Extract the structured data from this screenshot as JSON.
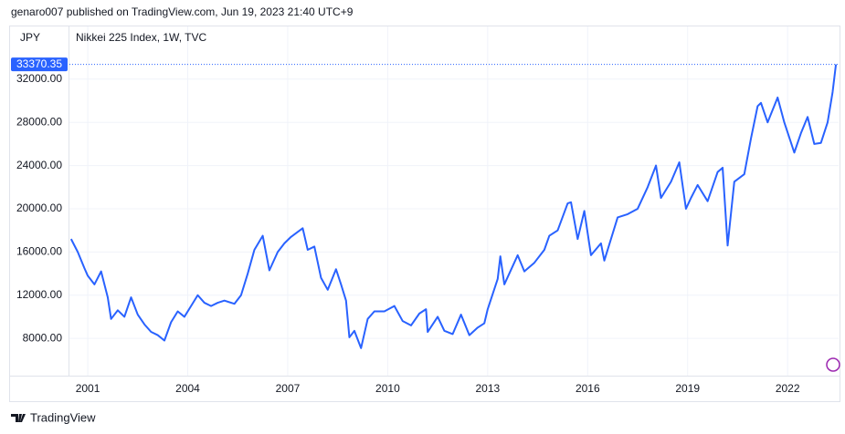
{
  "header": "genaro007 published on TradingView.com, Jun 19, 2023 21:40 UTC+9",
  "brand": "TradingView",
  "chart_data": {
    "type": "line",
    "title": "Nikkei 225 Index, 1W, TVC",
    "currency": "JPY",
    "x": [
      2000.5,
      2000.7,
      2000.9,
      2001.0,
      2001.2,
      2001.4,
      2001.6,
      2001.7,
      2001.9,
      2002.1,
      2002.3,
      2002.5,
      2002.7,
      2002.9,
      2003.1,
      2003.3,
      2003.5,
      2003.7,
      2003.9,
      2004.1,
      2004.3,
      2004.5,
      2004.7,
      2004.9,
      2005.1,
      2005.4,
      2005.6,
      2005.8,
      2006.0,
      2006.25,
      2006.45,
      2006.7,
      2006.9,
      2007.1,
      2007.45,
      2007.6,
      2007.8,
      2008.0,
      2008.2,
      2008.45,
      2008.6,
      2008.75,
      2008.85,
      2009.0,
      2009.2,
      2009.4,
      2009.6,
      2009.9,
      2010.2,
      2010.45,
      2010.7,
      2010.95,
      2011.15,
      2011.2,
      2011.5,
      2011.7,
      2011.95,
      2012.2,
      2012.45,
      2012.7,
      2012.9,
      2013.0,
      2013.3,
      2013.38,
      2013.5,
      2013.9,
      2014.1,
      2014.4,
      2014.7,
      2014.85,
      2015.1,
      2015.4,
      2015.5,
      2015.7,
      2015.9,
      2016.1,
      2016.4,
      2016.5,
      2016.9,
      2017.2,
      2017.5,
      2017.8,
      2018.05,
      2018.2,
      2018.5,
      2018.75,
      2018.95,
      2019.1,
      2019.3,
      2019.6,
      2019.9,
      2020.05,
      2020.2,
      2020.4,
      2020.7,
      2020.9,
      2021.1,
      2021.2,
      2021.4,
      2021.7,
      2021.9,
      2022.2,
      2022.4,
      2022.6,
      2022.8,
      2023.0,
      2023.2,
      2023.35,
      2023.45
    ],
    "series": [
      {
        "name": "Nikkei 225 Index",
        "color": "#2962ff",
        "values": [
          17200,
          16000,
          14500,
          13800,
          13000,
          14200,
          11800,
          9800,
          10600,
          10000,
          11800,
          10200,
          9300,
          8600,
          8300,
          7800,
          9500,
          10500,
          10000,
          11000,
          12000,
          11300,
          11000,
          11300,
          11500,
          11200,
          12000,
          14000,
          16200,
          17500,
          14300,
          16000,
          16800,
          17400,
          18200,
          16200,
          16500,
          13600,
          12500,
          14400,
          13000,
          11500,
          8100,
          8700,
          7100,
          9800,
          10500,
          10500,
          11000,
          9600,
          9200,
          10300,
          10700,
          8600,
          10000,
          8700,
          8400,
          10200,
          8300,
          9000,
          9400,
          10700,
          13500,
          15600,
          13000,
          15700,
          14200,
          15000,
          16200,
          17500,
          18000,
          20500,
          20600,
          17200,
          19800,
          15700,
          16800,
          15200,
          19200,
          19500,
          20000,
          22000,
          24000,
          21000,
          22500,
          24300,
          20000,
          21000,
          22200,
          20700,
          23400,
          23800,
          16600,
          22500,
          23200,
          26500,
          29500,
          29800,
          28000,
          30300,
          28000,
          25200,
          27000,
          28500,
          26000,
          26100,
          28000,
          30800,
          33370.35
        ]
      }
    ],
    "last_value": 33370.35,
    "xlim": [
      2000.45,
      2023.53
    ],
    "xticks": [
      2001,
      2004,
      2007,
      2010,
      2013,
      2016,
      2019,
      2022
    ],
    "ylim": [
      4550,
      36880
    ],
    "yticks": [
      {
        "value": 8000,
        "label": "8000.00"
      },
      {
        "value": 12000,
        "label": "12000.00"
      },
      {
        "value": 16000,
        "label": "16000.00"
      },
      {
        "value": 20000,
        "label": "20000.00"
      },
      {
        "value": 24000,
        "label": "24000.00"
      },
      {
        "value": 28000,
        "label": "28000.00"
      },
      {
        "value": 32000,
        "label": "32000.00"
      }
    ],
    "grid": true
  }
}
